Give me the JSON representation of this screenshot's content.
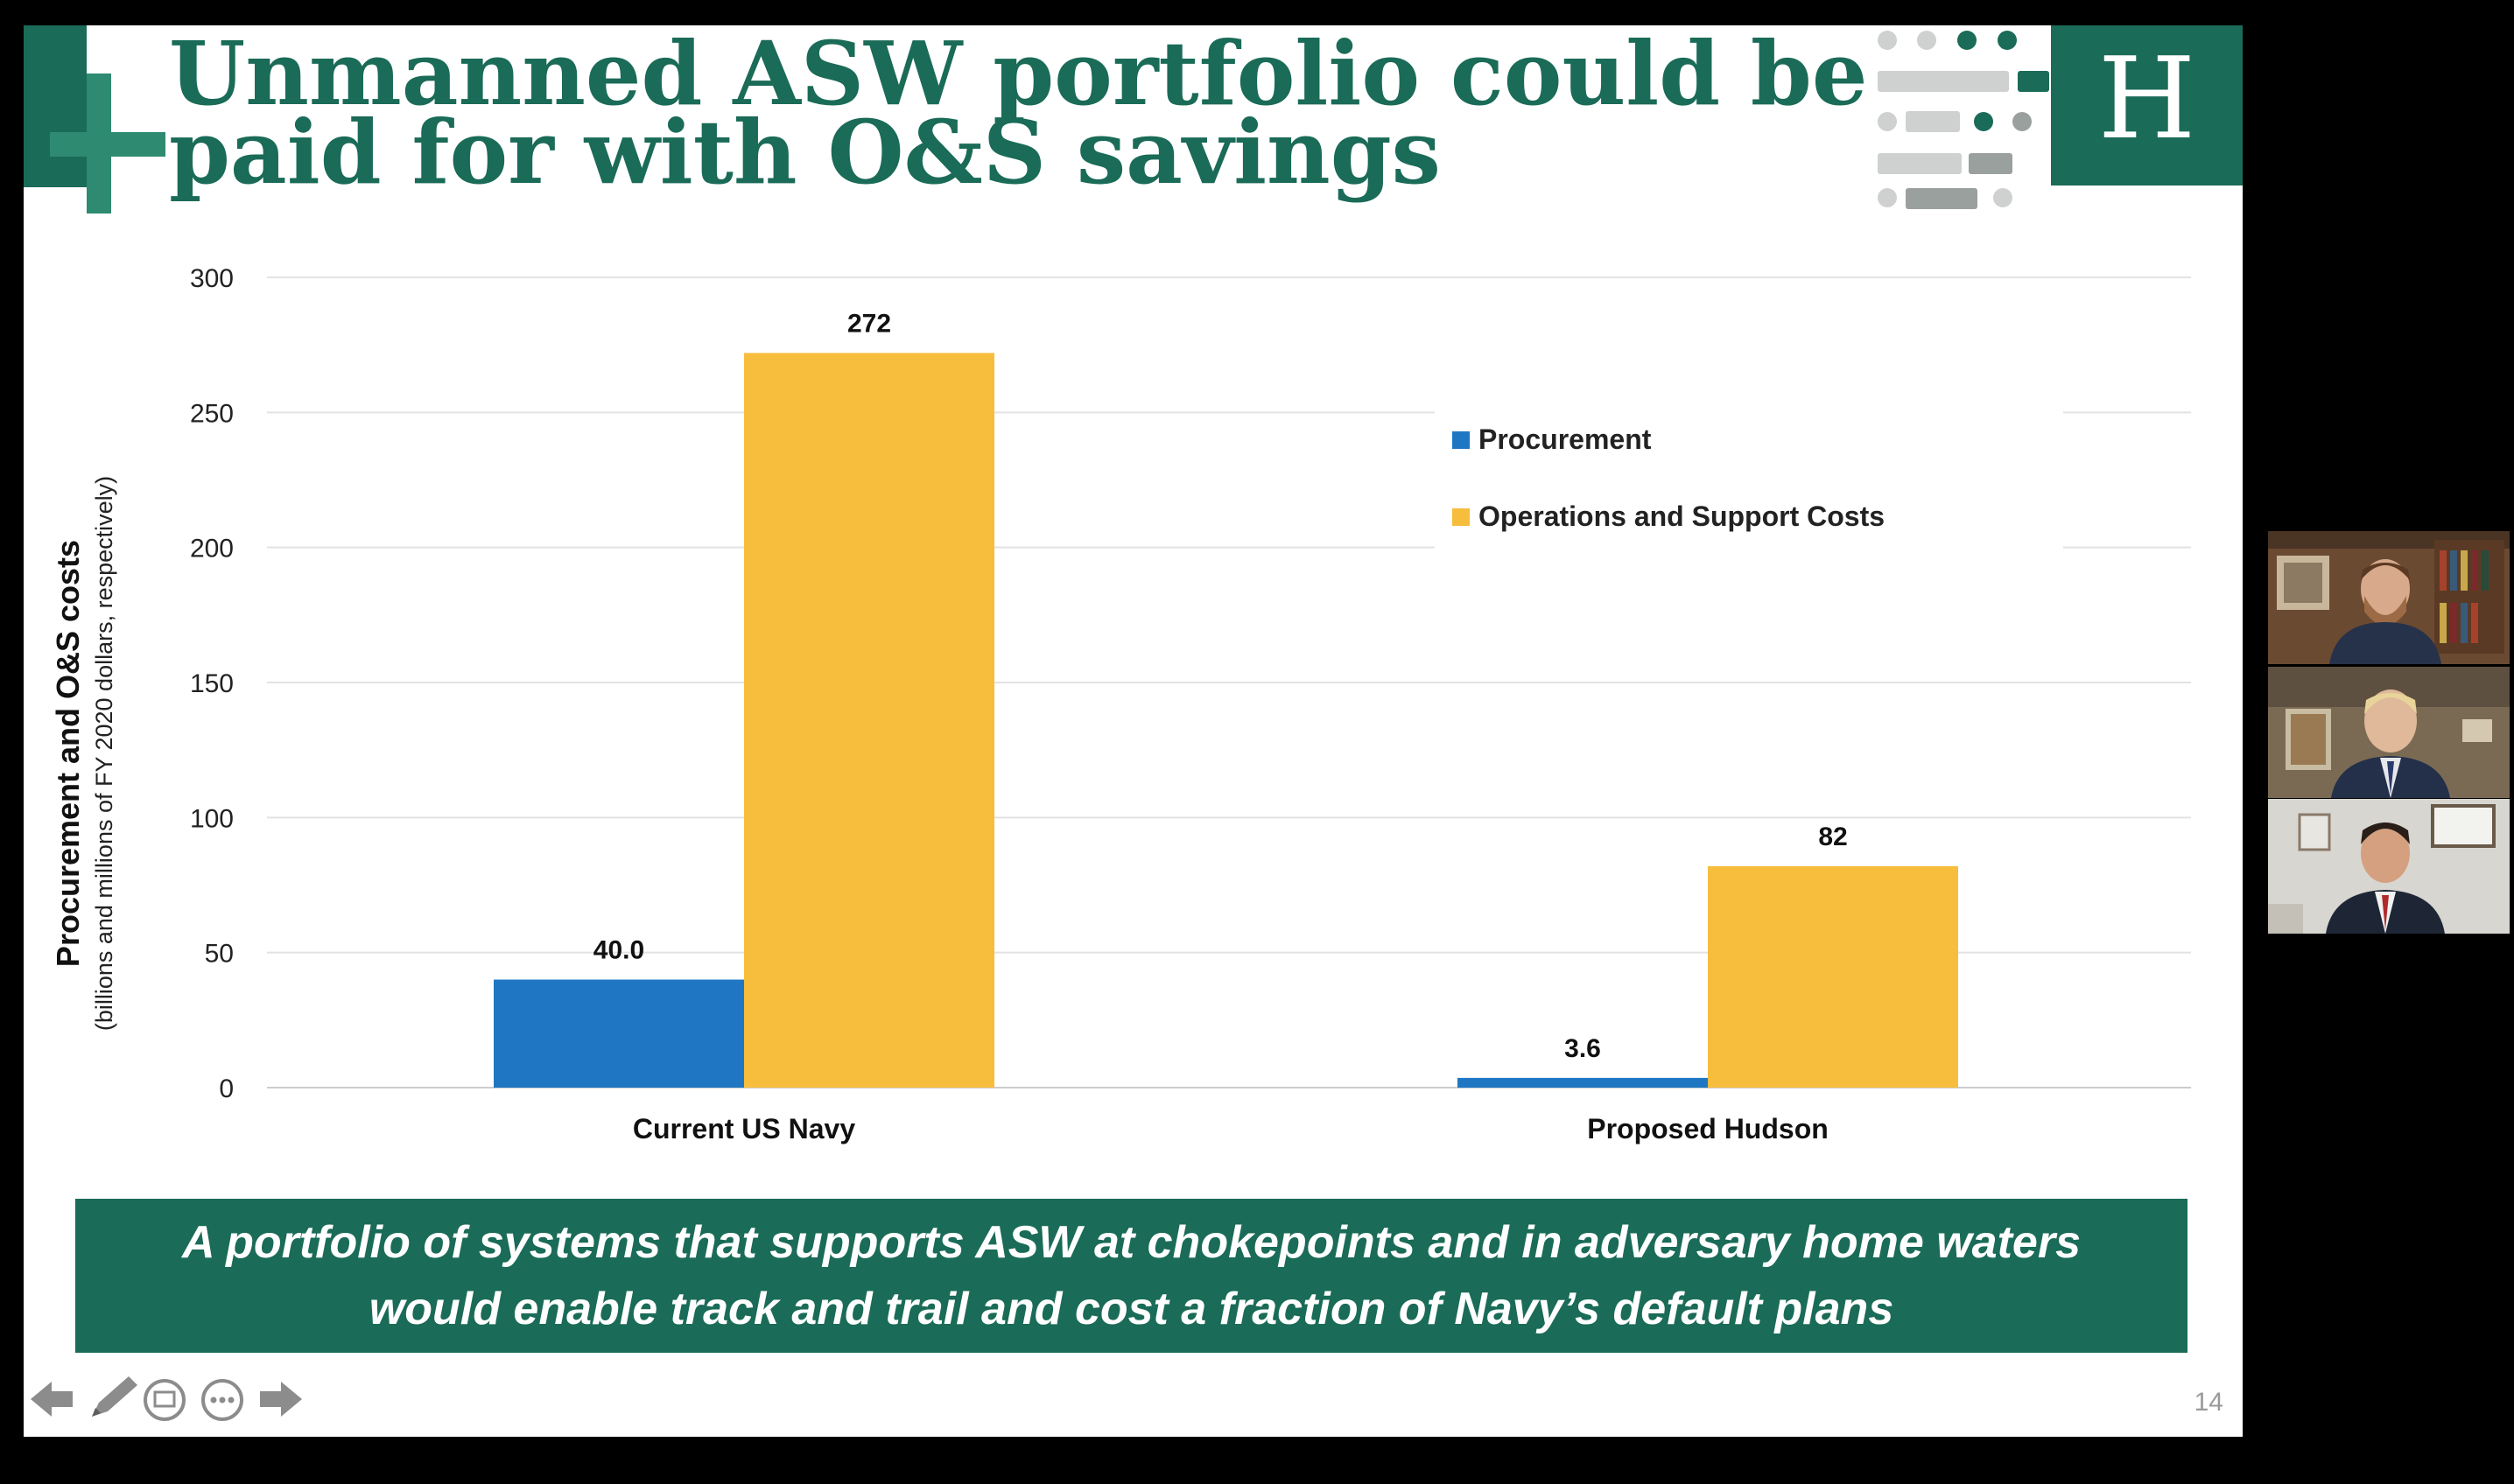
{
  "slide": {
    "title_line1": "Unmanned ASW portfolio could be",
    "title_line2": "paid for with O&S savings",
    "logo_letter": "H",
    "callout_line1": "A portfolio of systems that supports ASW at chokepoints and in adversary home waters",
    "callout_line2": "would enable track and trail and cost a fraction of Navy’s default plans",
    "page_number": "14",
    "brand_color": "#1a6b57"
  },
  "chart_data": {
    "type": "bar",
    "categories": [
      "Current US Navy",
      "Proposed Hudson"
    ],
    "series": [
      {
        "name": "Procurement",
        "values": [
          40.0,
          3.6
        ],
        "labels": [
          "40.0",
          "3.6"
        ],
        "color": "#1f77c4"
      },
      {
        "name": "Operations and Support Costs",
        "values": [
          272,
          82
        ],
        "labels": [
          "272",
          "82"
        ],
        "color": "#f7bd3c"
      }
    ],
    "ylabel": "Procurement and O&S costs",
    "ylabel_sub": "(billions and millions of FY 2020 dollars, respectively)",
    "ylim": [
      0,
      300
    ],
    "yticks": [
      0,
      50,
      100,
      150,
      200,
      250,
      300
    ],
    "grid": true,
    "legend_position": "top-right"
  },
  "controls": {
    "icons": [
      "back-arrow-icon",
      "pen-icon",
      "slides-icon",
      "more-icon",
      "forward-arrow-icon"
    ]
  },
  "participants": {
    "tiles": [
      "participant-1",
      "participant-2",
      "participant-3"
    ]
  }
}
